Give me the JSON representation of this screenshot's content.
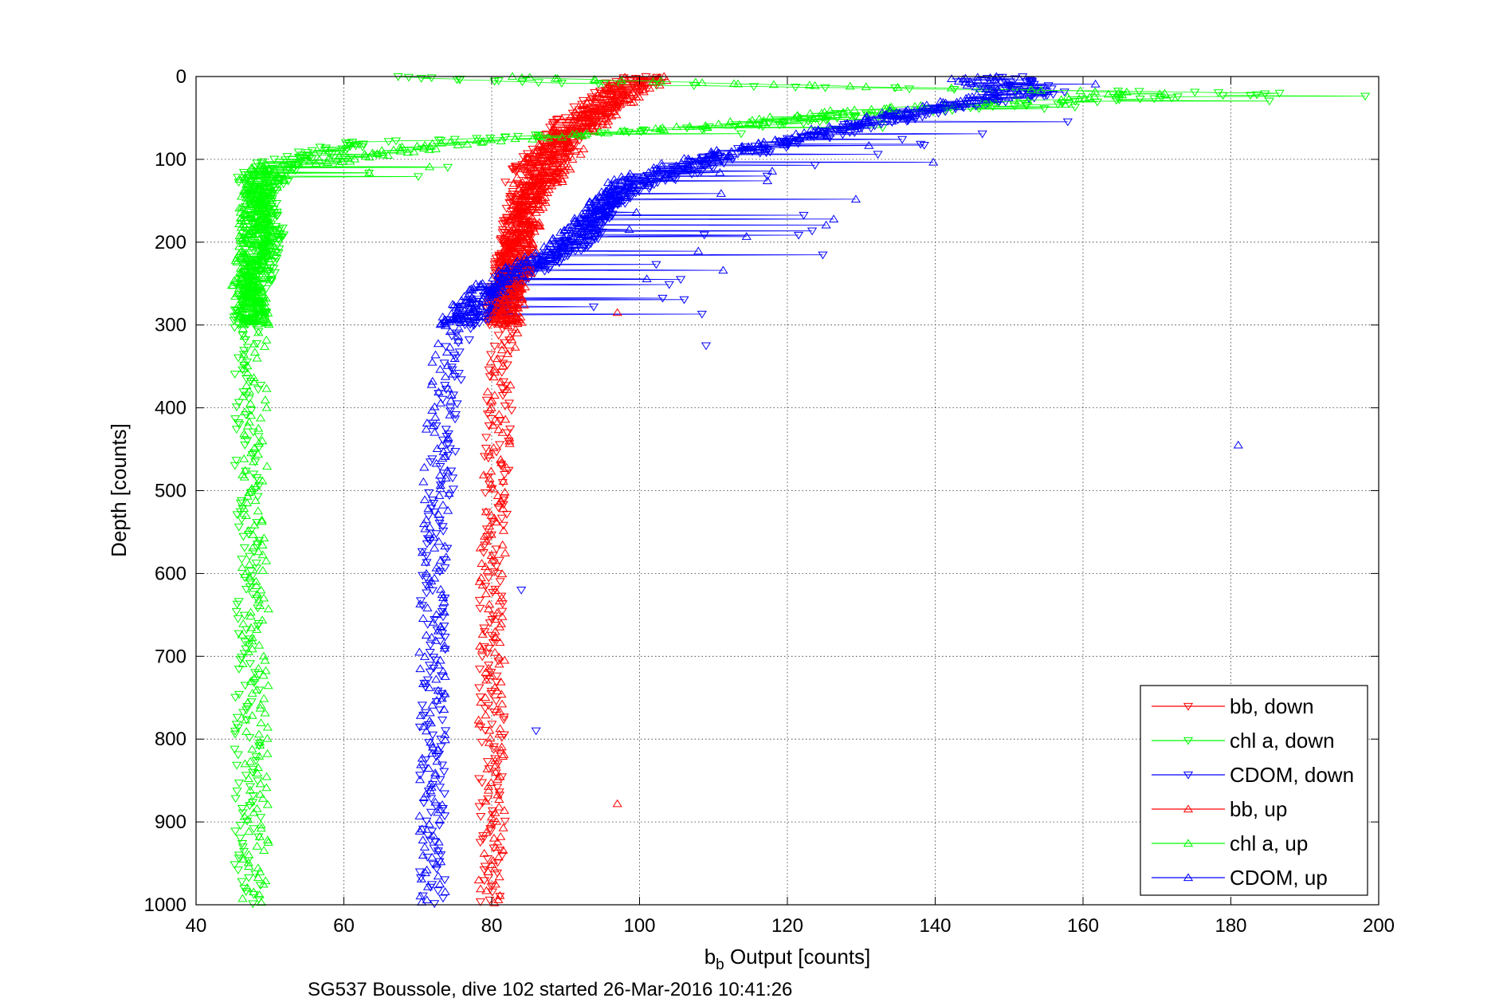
{
  "chart_data": {
    "type": "scatter",
    "title": "",
    "xlabel_main": "b",
    "xlabel_sub": "b",
    "xlabel_rest": " Output [counts]",
    "ylabel": "Depth [counts]",
    "footnote": "SG537 Boussole, dive 102 started 26-Mar-2016 10:41:26",
    "xlim": [
      40,
      200
    ],
    "ylim": [
      0,
      1000
    ],
    "y_reversed": true,
    "grid": true,
    "grid_style": "dotted",
    "legend_placement": "bottom-right",
    "x_ticks": [
      "40",
      "60",
      "80",
      "100",
      "120",
      "140",
      "160",
      "180",
      "200"
    ],
    "y_ticks": [
      "0",
      "100",
      "200",
      "300",
      "400",
      "500",
      "600",
      "700",
      "800",
      "900",
      "1000"
    ],
    "series": [
      {
        "name": "bb, down",
        "color": "#ff0000",
        "marker": "triangle-down",
        "profile": [
          [
            0,
            100
          ],
          [
            20,
            97
          ],
          [
            40,
            94
          ],
          [
            60,
            91
          ],
          [
            80,
            89
          ],
          [
            100,
            87
          ],
          [
            130,
            85
          ],
          [
            160,
            84
          ],
          [
            200,
            83
          ],
          [
            250,
            82
          ],
          [
            300,
            81
          ],
          [
            400,
            81
          ],
          [
            600,
            80
          ],
          [
            800,
            80
          ],
          [
            1000,
            80
          ]
        ],
        "outliers": []
      },
      {
        "name": "chl a, down",
        "color": "#00ff00",
        "marker": "triangle-down",
        "profile": [
          [
            0,
            66
          ],
          [
            10,
            96
          ],
          [
            20,
            185
          ],
          [
            40,
            140
          ],
          [
            60,
            115
          ],
          [
            80,
            62
          ],
          [
            100,
            52
          ],
          [
            120,
            49
          ],
          [
            150,
            49
          ],
          [
            200,
            50
          ],
          [
            250,
            48
          ],
          [
            300,
            47
          ],
          [
            500,
            47
          ],
          [
            800,
            47
          ],
          [
            1000,
            47
          ]
        ],
        "outliers": []
      },
      {
        "name": "CDOM, down",
        "color": "#0000ff",
        "marker": "triangle-down",
        "profile": [
          [
            0,
            150
          ],
          [
            20,
            155
          ],
          [
            40,
            140
          ],
          [
            60,
            130
          ],
          [
            80,
            120
          ],
          [
            100,
            110
          ],
          [
            130,
            100
          ],
          [
            160,
            95
          ],
          [
            200,
            92
          ],
          [
            250,
            82
          ],
          [
            280,
            80
          ],
          [
            300,
            76
          ],
          [
            400,
            74
          ],
          [
            600,
            72
          ],
          [
            800,
            72
          ],
          [
            1000,
            72
          ]
        ],
        "outliers": [
          [
            325,
            109
          ],
          [
            790,
            86
          ],
          [
            620,
            84
          ]
        ]
      },
      {
        "name": "bb, up",
        "color": "#ff0000",
        "marker": "triangle-up",
        "profile": [
          [
            0,
            101
          ],
          [
            20,
            98
          ],
          [
            40,
            95
          ],
          [
            60,
            92
          ],
          [
            80,
            90
          ],
          [
            100,
            88
          ],
          [
            130,
            86
          ],
          [
            160,
            85
          ],
          [
            200,
            84
          ],
          [
            250,
            83
          ],
          [
            300,
            82
          ],
          [
            400,
            81
          ],
          [
            600,
            80
          ],
          [
            800,
            80
          ],
          [
            1000,
            80
          ]
        ],
        "outliers": [
          [
            878,
            97
          ],
          [
            285,
            97
          ]
        ]
      },
      {
        "name": "chl a, up",
        "color": "#00ff00",
        "marker": "triangle-up",
        "profile": [
          [
            0,
            80
          ],
          [
            10,
            120
          ],
          [
            20,
            170
          ],
          [
            40,
            130
          ],
          [
            60,
            110
          ],
          [
            80,
            75
          ],
          [
            100,
            60
          ],
          [
            110,
            50
          ],
          [
            150,
            48
          ],
          [
            200,
            48
          ],
          [
            250,
            47
          ],
          [
            300,
            48
          ],
          [
            500,
            48
          ],
          [
            800,
            48
          ],
          [
            1000,
            48
          ]
        ],
        "outliers": []
      },
      {
        "name": "CDOM, up",
        "color": "#0000ff",
        "marker": "triangle-up",
        "profile": [
          [
            0,
            145
          ],
          [
            20,
            150
          ],
          [
            40,
            138
          ],
          [
            60,
            128
          ],
          [
            80,
            118
          ],
          [
            100,
            108
          ],
          [
            130,
            98
          ],
          [
            160,
            94
          ],
          [
            200,
            90
          ],
          [
            250,
            80
          ],
          [
            280,
            76
          ],
          [
            300,
            74
          ],
          [
            400,
            73
          ],
          [
            600,
            72
          ],
          [
            800,
            72
          ],
          [
            1000,
            72
          ]
        ],
        "outliers": [
          [
            445,
            181
          ]
        ]
      }
    ]
  }
}
